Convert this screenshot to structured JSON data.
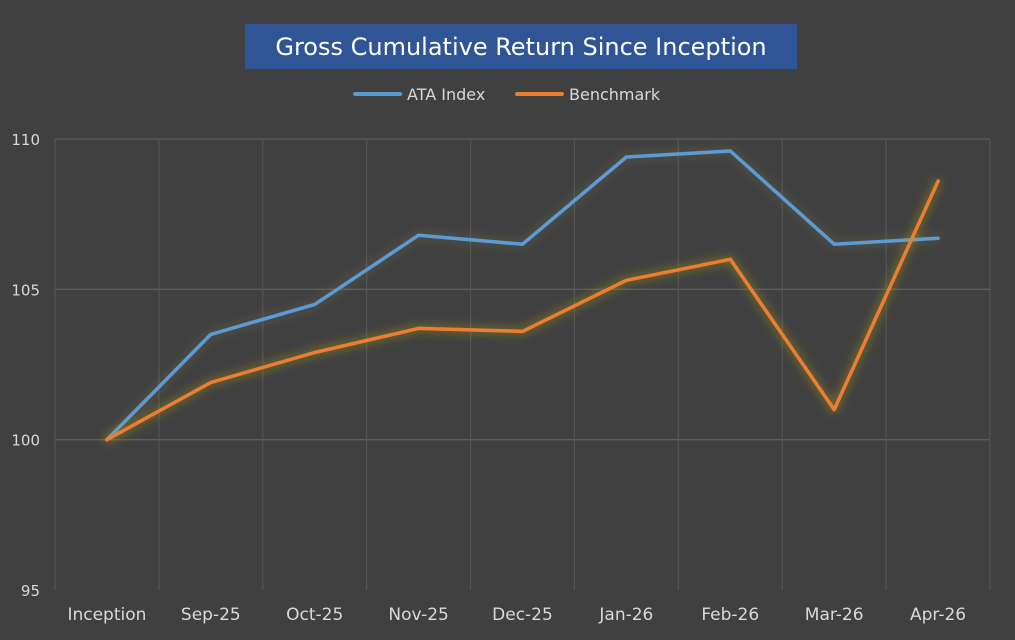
{
  "chart_data": {
    "type": "line",
    "title": "Gross Cumulative Return Since Inception",
    "xlabel": "",
    "ylabel": "",
    "categories": [
      "Inception",
      "Sep-25",
      "Oct-25",
      "Nov-25",
      "Dec-25",
      "Jan-26",
      "Feb-26",
      "Mar-26",
      "Apr-26"
    ],
    "series": [
      {
        "name": "ATA Index",
        "color": "#5b9bd5",
        "values": [
          100,
          103.5,
          104.5,
          106.8,
          106.5,
          109.4,
          109.6,
          106.5,
          106.7
        ]
      },
      {
        "name": "Benchmark",
        "color": "#ed7d31",
        "values": [
          100,
          101.9,
          102.9,
          103.7,
          103.6,
          105.3,
          106.0,
          101.0,
          108.6
        ]
      }
    ],
    "ylim": [
      95,
      110
    ],
    "yticks": [
      95,
      100,
      105,
      110
    ],
    "grid": true,
    "legend_position": "top-center",
    "background": "#404040",
    "title_background": "#2f5597"
  }
}
